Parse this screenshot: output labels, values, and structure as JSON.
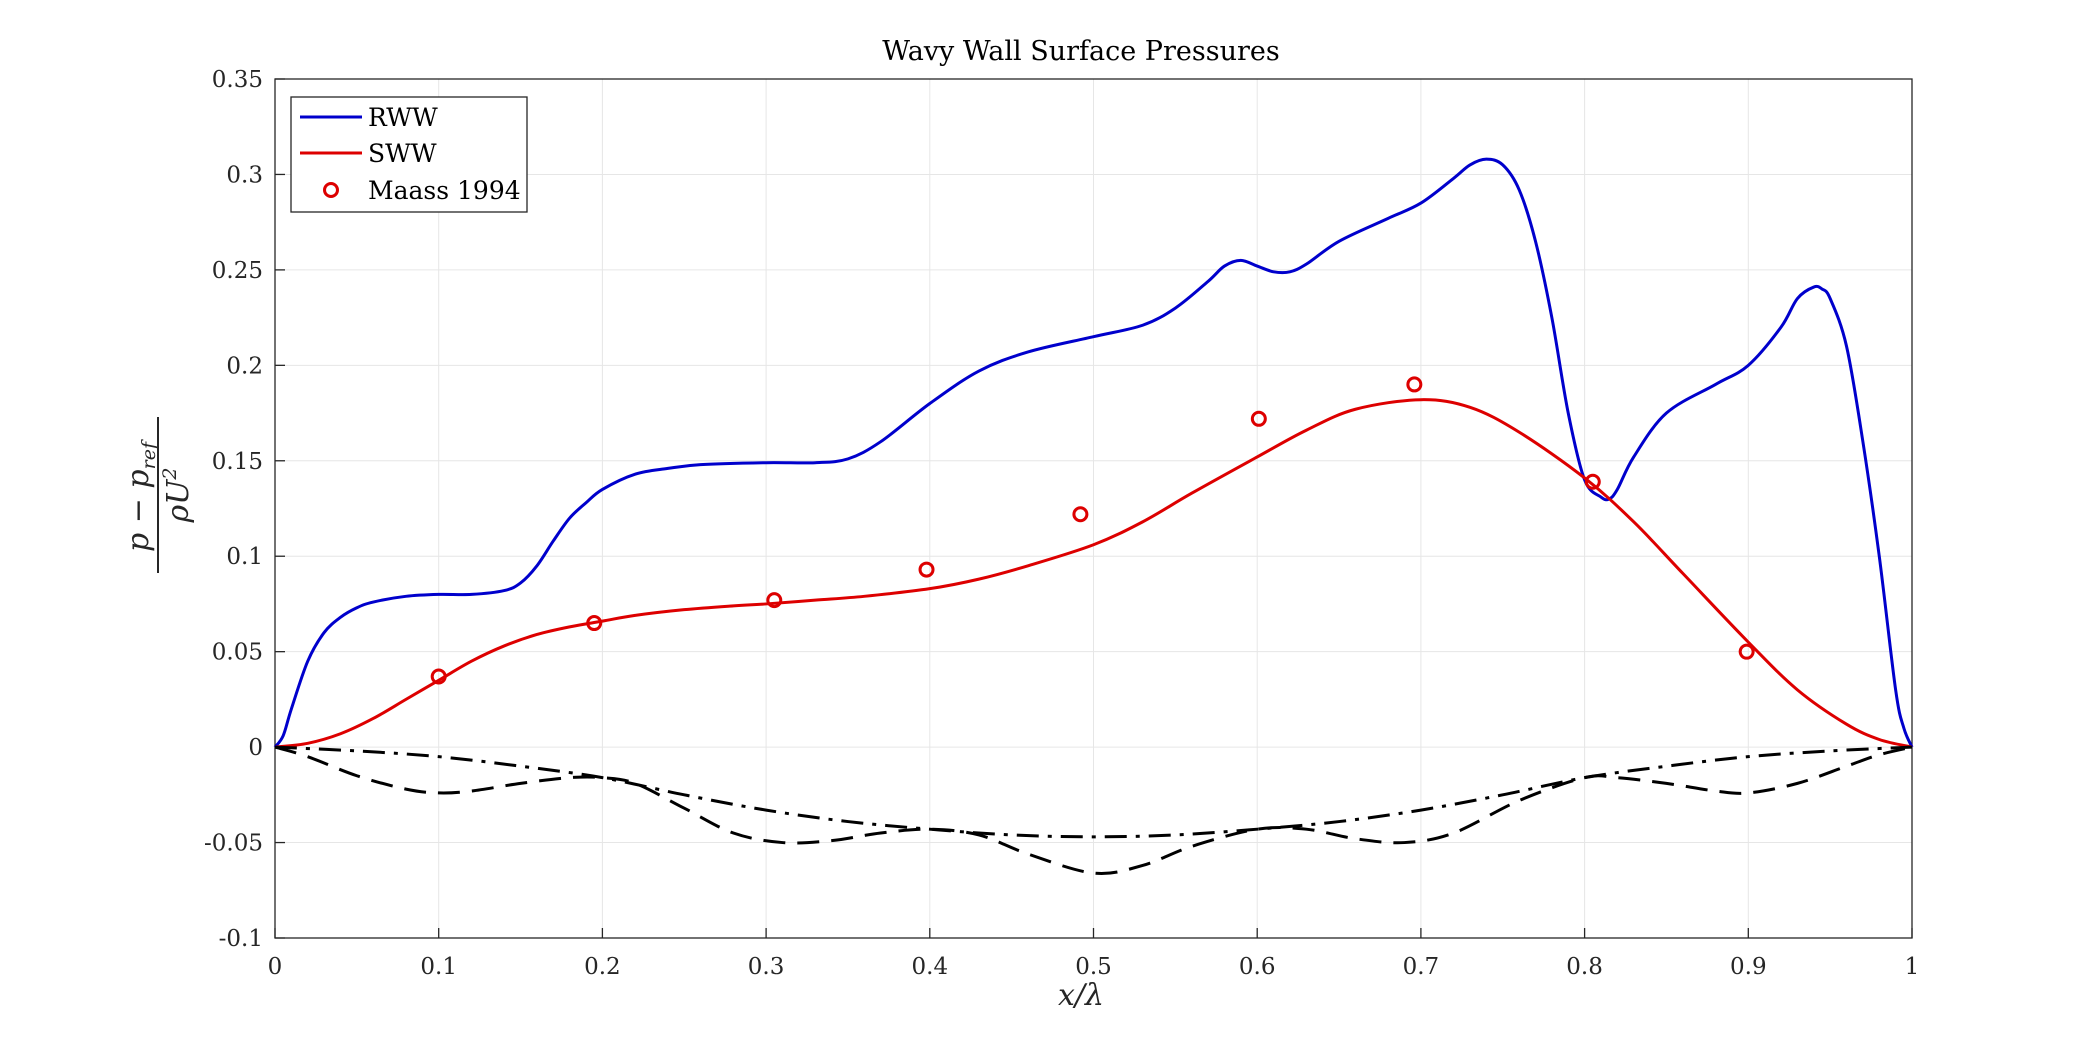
{
  "chart_data": {
    "type": "line",
    "title": "Wavy Wall Surface Pressures",
    "xlabel": "x/λ",
    "ylabel": "p − p_ref / ρU²",
    "ylabel_numerator": "p − p",
    "ylabel_numerator_sub": "ref",
    "ylabel_denominator": "ρU",
    "ylabel_denominator_sup": "2",
    "xlim": [
      0,
      1
    ],
    "ylim": [
      -0.1,
      0.35
    ],
    "grid": true,
    "legend_position": "top-left",
    "xticks": [
      "0",
      "0.1",
      "0.2",
      "0.3",
      "0.4",
      "0.5",
      "0.6",
      "0.7",
      "0.8",
      "0.9",
      "1"
    ],
    "yticks": [
      "-0.1",
      "-0.05",
      "0",
      "0.05",
      "0.1",
      "0.15",
      "0.2",
      "0.25",
      "0.3",
      "0.35"
    ],
    "legend": [
      "RWW",
      "SWW",
      "Maass 1994"
    ],
    "series": [
      {
        "name": "RWW",
        "color": "#0000cc",
        "style": "solid",
        "x": [
          0,
          0.005,
          0.01,
          0.02,
          0.03,
          0.04,
          0.05,
          0.06,
          0.08,
          0.1,
          0.12,
          0.14,
          0.15,
          0.16,
          0.17,
          0.18,
          0.19,
          0.2,
          0.22,
          0.24,
          0.26,
          0.3,
          0.33,
          0.35,
          0.37,
          0.4,
          0.43,
          0.46,
          0.5,
          0.53,
          0.55,
          0.57,
          0.58,
          0.59,
          0.6,
          0.61,
          0.62,
          0.63,
          0.65,
          0.68,
          0.7,
          0.72,
          0.73,
          0.74,
          0.75,
          0.76,
          0.77,
          0.78,
          0.79,
          0.8,
          0.81,
          0.815,
          0.82,
          0.83,
          0.85,
          0.88,
          0.9,
          0.92,
          0.93,
          0.94,
          0.945,
          0.95,
          0.96,
          0.97,
          0.98,
          0.99,
          0.995,
          1.0
        ],
        "y": [
          0,
          0.006,
          0.02,
          0.045,
          0.06,
          0.068,
          0.073,
          0.076,
          0.079,
          0.08,
          0.08,
          0.082,
          0.086,
          0.095,
          0.108,
          0.12,
          0.128,
          0.135,
          0.143,
          0.146,
          0.148,
          0.149,
          0.149,
          0.151,
          0.16,
          0.18,
          0.197,
          0.207,
          0.215,
          0.221,
          0.23,
          0.244,
          0.252,
          0.255,
          0.252,
          0.249,
          0.249,
          0.253,
          0.265,
          0.277,
          0.285,
          0.298,
          0.305,
          0.308,
          0.305,
          0.292,
          0.265,
          0.225,
          0.175,
          0.14,
          0.131,
          0.13,
          0.135,
          0.152,
          0.175,
          0.19,
          0.2,
          0.22,
          0.235,
          0.241,
          0.24,
          0.235,
          0.21,
          0.16,
          0.1,
          0.03,
          0.01,
          0
        ],
        "points": [
          [
            0,
            0
          ],
          [
            0.005,
            0.006
          ],
          [
            0.01,
            0.02
          ],
          [
            0.02,
            0.045
          ],
          [
            0.03,
            0.06
          ],
          [
            0.04,
            0.068
          ],
          [
            0.05,
            0.073
          ],
          [
            0.06,
            0.076
          ],
          [
            0.08,
            0.079
          ],
          [
            0.1,
            0.08
          ],
          [
            0.12,
            0.08
          ],
          [
            0.14,
            0.082
          ],
          [
            0.15,
            0.086
          ],
          [
            0.16,
            0.095
          ],
          [
            0.17,
            0.108
          ],
          [
            0.18,
            0.12
          ],
          [
            0.19,
            0.128
          ],
          [
            0.2,
            0.135
          ],
          [
            0.22,
            0.143
          ],
          [
            0.24,
            0.146
          ],
          [
            0.26,
            0.148
          ],
          [
            0.3,
            0.149
          ],
          [
            0.33,
            0.149
          ],
          [
            0.35,
            0.151
          ],
          [
            0.37,
            0.16
          ],
          [
            0.4,
            0.18
          ],
          [
            0.43,
            0.197
          ],
          [
            0.46,
            0.207
          ],
          [
            0.5,
            0.215
          ],
          [
            0.53,
            0.221
          ],
          [
            0.55,
            0.23
          ],
          [
            0.57,
            0.244
          ],
          [
            0.58,
            0.252
          ],
          [
            0.59,
            0.255
          ],
          [
            0.6,
            0.252
          ],
          [
            0.61,
            0.249
          ],
          [
            0.62,
            0.249
          ],
          [
            0.63,
            0.253
          ],
          [
            0.65,
            0.265
          ],
          [
            0.68,
            0.277
          ],
          [
            0.7,
            0.285
          ],
          [
            0.72,
            0.298
          ],
          [
            0.73,
            0.305
          ],
          [
            0.74,
            0.308
          ],
          [
            0.75,
            0.305
          ],
          [
            0.76,
            0.292
          ],
          [
            0.77,
            0.265
          ],
          [
            0.78,
            0.225
          ],
          [
            0.79,
            0.175
          ],
          [
            0.8,
            0.14
          ],
          [
            0.81,
            0.131
          ],
          [
            0.815,
            0.13
          ],
          [
            0.82,
            0.135
          ],
          [
            0.83,
            0.152
          ],
          [
            0.85,
            0.175
          ],
          [
            0.88,
            0.19
          ],
          [
            0.9,
            0.2
          ],
          [
            0.92,
            0.22
          ],
          [
            0.93,
            0.235
          ],
          [
            0.94,
            0.241
          ],
          [
            0.945,
            0.24
          ],
          [
            0.95,
            0.235
          ],
          [
            0.96,
            0.21
          ],
          [
            0.97,
            0.16
          ],
          [
            0.98,
            0.1
          ],
          [
            0.99,
            0.03
          ],
          [
            0.995,
            0.01
          ],
          [
            1,
            0
          ]
        ]
      },
      {
        "name": "SWW",
        "color": "#dd0000",
        "style": "solid",
        "points": [
          [
            0,
            0
          ],
          [
            0.02,
            0.002
          ],
          [
            0.04,
            0.007
          ],
          [
            0.06,
            0.015
          ],
          [
            0.08,
            0.025
          ],
          [
            0.1,
            0.035
          ],
          [
            0.12,
            0.045
          ],
          [
            0.14,
            0.053
          ],
          [
            0.16,
            0.059
          ],
          [
            0.18,
            0.063
          ],
          [
            0.2,
            0.066
          ],
          [
            0.22,
            0.069
          ],
          [
            0.25,
            0.072
          ],
          [
            0.28,
            0.074
          ],
          [
            0.3,
            0.075
          ],
          [
            0.33,
            0.077
          ],
          [
            0.36,
            0.079
          ],
          [
            0.4,
            0.083
          ],
          [
            0.43,
            0.088
          ],
          [
            0.46,
            0.095
          ],
          [
            0.5,
            0.106
          ],
          [
            0.53,
            0.118
          ],
          [
            0.56,
            0.133
          ],
          [
            0.6,
            0.152
          ],
          [
            0.63,
            0.166
          ],
          [
            0.66,
            0.177
          ],
          [
            0.7,
            0.182
          ],
          [
            0.73,
            0.178
          ],
          [
            0.76,
            0.165
          ],
          [
            0.8,
            0.141
          ],
          [
            0.83,
            0.118
          ],
          [
            0.86,
            0.091
          ],
          [
            0.9,
            0.055
          ],
          [
            0.93,
            0.03
          ],
          [
            0.96,
            0.012
          ],
          [
            0.98,
            0.004
          ],
          [
            1,
            0
          ]
        ]
      },
      {
        "name": "Maass 1994",
        "color": "#dd0000",
        "style": "markers",
        "points": [
          [
            0.1,
            0.037
          ],
          [
            0.195,
            0.065
          ],
          [
            0.305,
            0.077
          ],
          [
            0.398,
            0.093
          ],
          [
            0.492,
            0.122
          ],
          [
            0.601,
            0.172
          ],
          [
            0.696,
            0.19
          ],
          [
            0.805,
            0.139
          ],
          [
            0.899,
            0.05
          ]
        ]
      },
      {
        "color": "#000000",
        "style": "dashed",
        "points": [
          [
            0,
            0
          ],
          [
            0.02,
            -0.005
          ],
          [
            0.05,
            -0.015
          ],
          [
            0.08,
            -0.022
          ],
          [
            0.1,
            -0.024
          ],
          [
            0.12,
            -0.023
          ],
          [
            0.15,
            -0.019
          ],
          [
            0.18,
            -0.016
          ],
          [
            0.2,
            -0.016
          ],
          [
            0.22,
            -0.019
          ],
          [
            0.25,
            -0.032
          ],
          [
            0.28,
            -0.045
          ],
          [
            0.31,
            -0.05
          ],
          [
            0.34,
            -0.049
          ],
          [
            0.37,
            -0.045
          ],
          [
            0.4,
            -0.043
          ],
          [
            0.43,
            -0.046
          ],
          [
            0.46,
            -0.056
          ],
          [
            0.5,
            -0.066
          ],
          [
            0.53,
            -0.062
          ],
          [
            0.56,
            -0.052
          ],
          [
            0.6,
            -0.043
          ],
          [
            0.63,
            -0.043
          ],
          [
            0.66,
            -0.048
          ],
          [
            0.69,
            -0.05
          ],
          [
            0.72,
            -0.045
          ],
          [
            0.76,
            -0.028
          ],
          [
            0.8,
            -0.016
          ],
          [
            0.82,
            -0.016
          ],
          [
            0.85,
            -0.019
          ],
          [
            0.88,
            -0.023
          ],
          [
            0.9,
            -0.024
          ],
          [
            0.93,
            -0.019
          ],
          [
            0.96,
            -0.01
          ],
          [
            0.98,
            -0.004
          ],
          [
            1,
            0
          ]
        ]
      },
      {
        "color": "#000000",
        "style": "dashdot",
        "points": [
          [
            0,
            0
          ],
          [
            0.05,
            -0.002
          ],
          [
            0.1,
            -0.005
          ],
          [
            0.15,
            -0.01
          ],
          [
            0.2,
            -0.016
          ],
          [
            0.25,
            -0.025
          ],
          [
            0.3,
            -0.033
          ],
          [
            0.35,
            -0.039
          ],
          [
            0.4,
            -0.043
          ],
          [
            0.45,
            -0.046
          ],
          [
            0.5,
            -0.047
          ],
          [
            0.55,
            -0.046
          ],
          [
            0.6,
            -0.043
          ],
          [
            0.65,
            -0.039
          ],
          [
            0.7,
            -0.033
          ],
          [
            0.75,
            -0.025
          ],
          [
            0.8,
            -0.016
          ],
          [
            0.85,
            -0.01
          ],
          [
            0.9,
            -0.005
          ],
          [
            0.95,
            -0.002
          ],
          [
            1,
            0
          ]
        ]
      }
    ]
  }
}
